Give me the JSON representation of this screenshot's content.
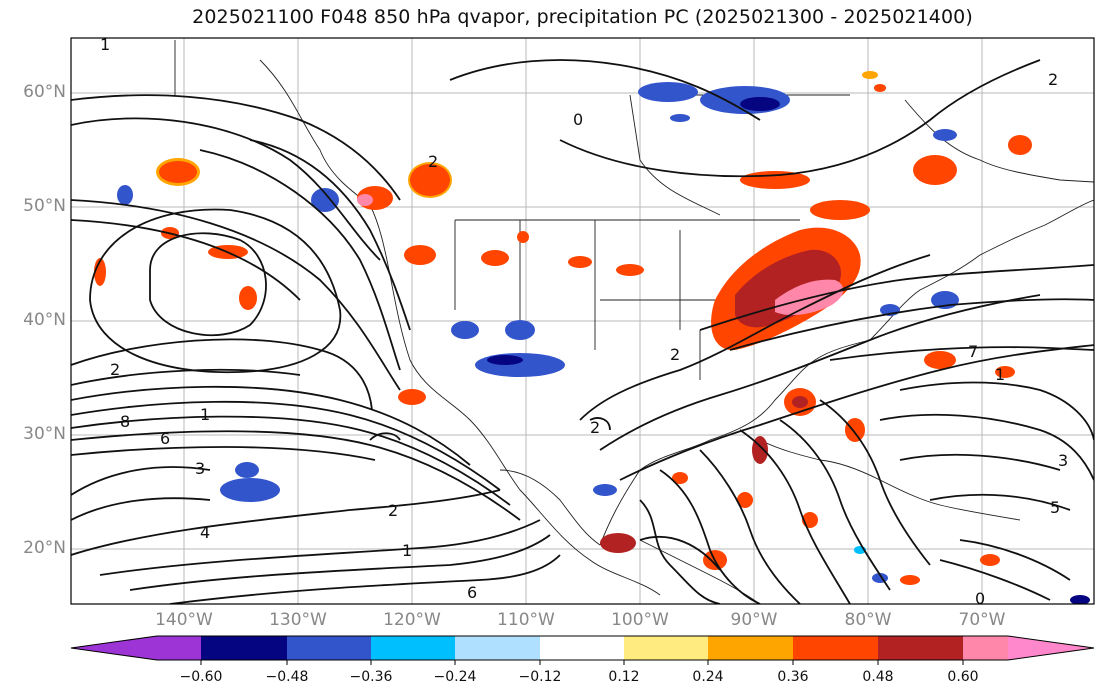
{
  "title": "2025021100 F048 850 hPa qvapor, precipitation PC (2025021300 - 2025021400)",
  "lat_labels": [
    "60°N",
    "50°N",
    "40°N",
    "30°N",
    "20°N"
  ],
  "lon_labels": [
    "140°W",
    "130°W",
    "120°W",
    "110°W",
    "100°W",
    "90°W",
    "80°W",
    "70°W"
  ],
  "colorbar": {
    "ticks": [
      "−0.60",
      "−0.48",
      "−0.36",
      "−0.24",
      "−0.12",
      "0.12",
      "0.24",
      "0.36",
      "0.48",
      "0.60"
    ],
    "colors": [
      "#9d34d6",
      "#050581",
      "#3355cc",
      "#00bfff",
      "#b0e0ff",
      "#ffffff",
      "#ffeb80",
      "#ffa500",
      "#ff4500",
      "#b22222",
      "#ff88aa",
      "#ff88cc"
    ]
  },
  "contour_labels": [
    "2",
    "2",
    "2",
    "2",
    "1",
    "1",
    "1",
    "0",
    "0",
    "3",
    "3",
    "4",
    "5",
    "6",
    "6",
    "7",
    "8",
    "2",
    "2",
    "1"
  ],
  "fill_colors": {
    "red": "#ff4500",
    "dark_red": "#b22222",
    "orange": "#ffa500",
    "yellow": "#ffeb80",
    "pink": "#ff88aa",
    "blue": "#3355cc",
    "navy": "#050581",
    "cyan": "#00bfff",
    "light_blue": "#b0e0ff"
  }
}
